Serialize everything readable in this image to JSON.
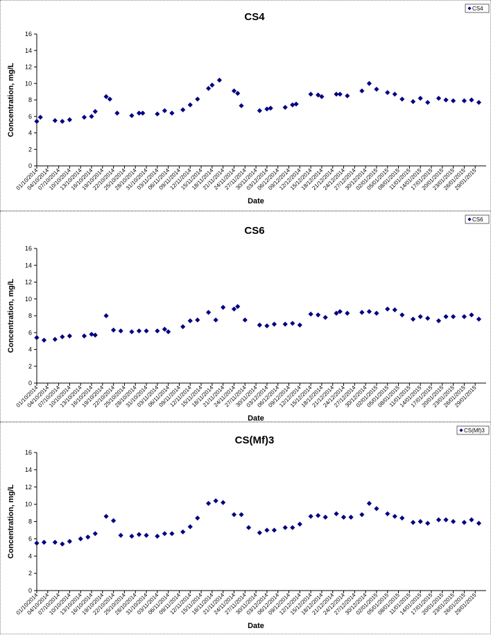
{
  "colors": {
    "marker": "#000080",
    "axis": "#000000",
    "background": "#ffffff",
    "frame": "#888888"
  },
  "chart_data": [
    {
      "type": "scatter",
      "title": "CS4",
      "xlabel": "Date",
      "ylabel": "Concentration, mg/L",
      "ylim": [
        0,
        16
      ],
      "yticks": [
        "0",
        "2",
        "4",
        "6",
        "8",
        "10",
        "12",
        "14",
        "16"
      ],
      "grid": false,
      "legend_position": "top-right",
      "xtick_labels": [
        "01/10/2014",
        "04/10/2014",
        "07/10/2014",
        "10/10/2014",
        "13/10/2014",
        "16/10/2014",
        "19/10/2014",
        "22/10/2014",
        "25/10/2014",
        "28/10/2014",
        "31/10/2014",
        "03/11/2014",
        "06/11/2014",
        "09/11/2014",
        "12/11/2014",
        "15/11/2014",
        "18/11/2014",
        "21/11/2014",
        "24/11/2014",
        "27/11/2014",
        "30/11/2014",
        "03/12/2014",
        "06/12/2014",
        "09/12/2014",
        "12/12/2014",
        "15/12/2014",
        "18/12/2014",
        "21/12/2014",
        "24/12/2014",
        "27/12/2014",
        "30/12/2014",
        "02/01/2015",
        "05/01/2015",
        "08/01/2015",
        "11/01/2015",
        "14/01/2015",
        "17/01/2015",
        "20/01/2015",
        "23/01/2015",
        "26/01/2015",
        "29/01/2015"
      ],
      "series": [
        {
          "name": "CS4",
          "x": [
            "01/10/2014",
            "02/10/2014",
            "06/10/2014",
            "08/10/2014",
            "10/10/2014",
            "14/10/2014",
            "16/10/2014",
            "17/10/2014",
            "20/10/2014",
            "21/10/2014",
            "23/10/2014",
            "27/10/2014",
            "29/10/2014",
            "30/10/2014",
            "03/11/2014",
            "05/11/2014",
            "07/11/2014",
            "10/11/2014",
            "12/11/2014",
            "14/11/2014",
            "17/11/2014",
            "18/11/2014",
            "20/11/2014",
            "24/11/2014",
            "25/11/2014",
            "26/11/2014",
            "01/12/2014",
            "03/12/2014",
            "04/12/2014",
            "08/12/2014",
            "10/12/2014",
            "11/12/2014",
            "15/12/2014",
            "17/12/2014",
            "18/12/2014",
            "22/12/2014",
            "23/12/2014",
            "25/12/2014",
            "29/12/2014",
            "31/12/2014",
            "02/01/2015",
            "05/01/2015",
            "07/01/2015",
            "09/01/2015",
            "12/01/2015",
            "14/01/2015",
            "16/01/2015",
            "19/01/2015",
            "21/01/2015",
            "23/01/2015",
            "26/01/2015",
            "28/01/2015",
            "30/01/2015"
          ],
          "values": [
            5.4,
            5.9,
            5.5,
            5.4,
            5.6,
            5.9,
            6.0,
            6.6,
            8.4,
            8.1,
            6.4,
            6.1,
            6.4,
            6.4,
            6.3,
            6.7,
            6.4,
            6.8,
            7.4,
            8.1,
            9.4,
            9.8,
            10.4,
            9.1,
            8.8,
            7.3,
            6.7,
            6.9,
            7.0,
            7.1,
            7.4,
            7.5,
            8.7,
            8.6,
            8.4,
            8.7,
            8.7,
            8.5,
            9.1,
            10.0,
            9.3,
            8.9,
            8.7,
            8.1,
            7.8,
            8.2,
            7.7,
            8.2,
            8.0,
            7.9,
            7.9,
            8.0,
            7.7
          ]
        }
      ]
    },
    {
      "type": "scatter",
      "title": "CS6",
      "xlabel": "Date",
      "ylabel": "Concentration, mg/L",
      "ylim": [
        0,
        16
      ],
      "yticks": [
        "0",
        "2",
        "4",
        "6",
        "8",
        "10",
        "12",
        "14",
        "16"
      ],
      "grid": false,
      "legend_position": "top-right",
      "xtick_labels": [
        "01/10/2014",
        "04/10/2014",
        "07/10/2014",
        "10/10/2014",
        "13/10/2014",
        "16/10/2014",
        "19/10/2014",
        "22/10/2014",
        "25/10/2014",
        "28/10/2014",
        "31/10/2014",
        "03/11/2014",
        "06/11/2014",
        "09/11/2014",
        "12/11/2014",
        "15/11/2014",
        "18/11/2014",
        "21/11/2014",
        "24/11/2014",
        "27/11/2014",
        "30/11/2014",
        "03/12/2014",
        "06/12/2014",
        "09/12/2014",
        "12/12/2014",
        "15/12/2014",
        "18/12/2014",
        "21/12/2014",
        "24/12/2014",
        "27/12/2014",
        "30/12/2014",
        "02/01/2015",
        "05/01/2015",
        "08/01/2015",
        "11/01/2015",
        "14/01/2015",
        "17/01/2015",
        "20/01/2015",
        "23/01/2015",
        "26/01/2015",
        "29/01/2015"
      ],
      "series": [
        {
          "name": "CS6",
          "x": [
            "01/10/2014",
            "03/10/2014",
            "06/10/2014",
            "08/10/2014",
            "10/10/2014",
            "14/10/2014",
            "16/10/2014",
            "17/10/2014",
            "20/10/2014",
            "22/10/2014",
            "24/10/2014",
            "27/10/2014",
            "29/10/2014",
            "31/10/2014",
            "03/11/2014",
            "05/11/2014",
            "06/11/2014",
            "10/11/2014",
            "12/11/2014",
            "14/11/2014",
            "17/11/2014",
            "19/11/2014",
            "21/11/2014",
            "24/11/2014",
            "25/11/2014",
            "27/11/2014",
            "01/12/2014",
            "03/12/2014",
            "05/12/2014",
            "08/12/2014",
            "10/12/2014",
            "12/12/2014",
            "15/12/2014",
            "17/12/2014",
            "19/12/2014",
            "22/12/2014",
            "23/12/2014",
            "25/12/2014",
            "29/12/2014",
            "31/12/2014",
            "02/01/2015",
            "05/01/2015",
            "07/01/2015",
            "09/01/2015",
            "12/01/2015",
            "14/01/2015",
            "16/01/2015",
            "19/01/2015",
            "21/01/2015",
            "23/01/2015",
            "26/01/2015",
            "28/01/2015",
            "30/01/2015"
          ],
          "values": [
            5.4,
            5.1,
            5.2,
            5.5,
            5.6,
            5.6,
            5.8,
            5.7,
            8.0,
            6.3,
            6.2,
            6.1,
            6.2,
            6.2,
            6.2,
            6.4,
            6.1,
            6.7,
            7.4,
            7.5,
            8.4,
            7.5,
            9.0,
            8.8,
            9.1,
            7.5,
            6.9,
            6.8,
            7.0,
            7.0,
            7.1,
            6.9,
            8.2,
            8.1,
            7.8,
            8.3,
            8.5,
            8.3,
            8.4,
            8.5,
            8.3,
            8.8,
            8.7,
            8.1,
            7.6,
            7.9,
            7.7,
            7.4,
            7.9,
            7.9,
            7.9,
            8.1,
            7.6
          ]
        }
      ]
    },
    {
      "type": "scatter",
      "title": "CS(Mf)3",
      "xlabel": "Date",
      "ylabel": "Concentration, mg/L",
      "ylim": [
        0,
        16
      ],
      "yticks": [
        "0",
        "2",
        "4",
        "6",
        "8",
        "10",
        "12",
        "14",
        "16"
      ],
      "grid": false,
      "legend_position": "top-right",
      "xtick_labels": [
        "01/10/2014",
        "04/10/2014",
        "07/10/2014",
        "10/10/2014",
        "13/10/2014",
        "16/10/2014",
        "19/10/2014",
        "22/10/2014",
        "25/10/2014",
        "28/10/2014",
        "31/10/2014",
        "03/11/2014",
        "06/11/2014",
        "09/11/2014",
        "12/11/2014",
        "15/11/2014",
        "18/11/2014",
        "21/11/2014",
        "24/11/2014",
        "27/11/2014",
        "30/11/2014",
        "03/12/2014",
        "06/12/2014",
        "09/12/2014",
        "12/12/2014",
        "15/12/2014",
        "18/12/2014",
        "21/12/2014",
        "24/12/2014",
        "27/12/2014",
        "30/12/2014",
        "02/01/2015",
        "05/01/2015",
        "08/01/2015",
        "11/01/2015",
        "14/01/2015",
        "17/01/2015",
        "20/01/2015",
        "23/01/2015",
        "26/01/2015",
        "29/01/2015"
      ],
      "series": [
        {
          "name": "CS(Mf)3",
          "x": [
            "01/10/2014",
            "03/10/2014",
            "06/10/2014",
            "08/10/2014",
            "10/10/2014",
            "13/10/2014",
            "15/10/2014",
            "17/10/2014",
            "20/10/2014",
            "22/10/2014",
            "24/10/2014",
            "27/10/2014",
            "29/10/2014",
            "31/10/2014",
            "03/11/2014",
            "05/11/2014",
            "07/11/2014",
            "10/11/2014",
            "12/11/2014",
            "14/11/2014",
            "17/11/2014",
            "19/11/2014",
            "21/11/2014",
            "24/11/2014",
            "26/11/2014",
            "28/11/2014",
            "01/12/2014",
            "03/12/2014",
            "05/12/2014",
            "08/12/2014",
            "10/12/2014",
            "12/12/2014",
            "15/12/2014",
            "17/12/2014",
            "19/12/2014",
            "22/12/2014",
            "24/12/2014",
            "26/12/2014",
            "29/12/2014",
            "31/12/2014",
            "02/01/2015",
            "05/01/2015",
            "07/01/2015",
            "09/01/2015",
            "12/01/2015",
            "14/01/2015",
            "16/01/2015",
            "19/01/2015",
            "21/01/2015",
            "23/01/2015",
            "26/01/2015",
            "28/01/2015",
            "30/01/2015"
          ],
          "values": [
            5.5,
            5.6,
            5.6,
            5.4,
            5.7,
            6.0,
            6.2,
            6.6,
            8.6,
            8.1,
            6.4,
            6.3,
            6.5,
            6.4,
            6.3,
            6.6,
            6.6,
            6.8,
            7.4,
            8.4,
            10.1,
            10.4,
            10.2,
            8.8,
            8.8,
            7.3,
            6.7,
            7.0,
            7.0,
            7.3,
            7.3,
            7.7,
            8.6,
            8.7,
            8.5,
            8.9,
            8.5,
            8.5,
            8.8,
            10.1,
            9.5,
            8.9,
            8.6,
            8.4,
            7.9,
            8.0,
            7.8,
            8.2,
            8.2,
            8.0,
            7.9,
            8.2,
            7.8
          ]
        }
      ]
    }
  ]
}
